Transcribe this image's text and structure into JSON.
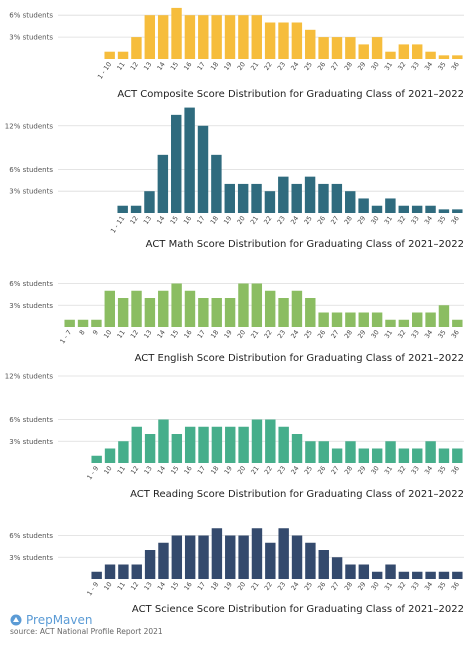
{
  "brand": {
    "name": "PrepMaven",
    "icon": "prepmaven-logo-icon",
    "color": "#5b9bd5"
  },
  "source": "source: ACT National Profile Report 2021",
  "chart_data": [
    {
      "type": "bar",
      "title": "ACT Composite Score Distribution for Graduating Class of 2021–2022",
      "color": "#f6bd3c",
      "yticks": [
        {
          "value": 3,
          "label": "3% students"
        },
        {
          "value": 6,
          "label": "6% students"
        }
      ],
      "ylim": [
        0,
        7
      ],
      "categories": [
        "1 - 10",
        "11",
        "12",
        "13",
        "14",
        "15",
        "16",
        "17",
        "18",
        "19",
        "20",
        "21",
        "22",
        "23",
        "24",
        "25",
        "26",
        "27",
        "28",
        "29",
        "30",
        "31",
        "32",
        "33",
        "34",
        "35",
        "36"
      ],
      "values": [
        1,
        1,
        3,
        6,
        6,
        7,
        6,
        6,
        6,
        6,
        6,
        6,
        5,
        5,
        5,
        4,
        3,
        3,
        3,
        2,
        3,
        1,
        2,
        2,
        1,
        0.5,
        0.5
      ]
    },
    {
      "type": "bar",
      "title": "ACT Math Score Distribution for Graduating Class of 2021–2022",
      "color": "#2f6b7e",
      "yticks": [
        {
          "value": 3,
          "label": "3% students"
        },
        {
          "value": 6,
          "label": "6% students"
        },
        {
          "value": 12,
          "label": "12% students"
        }
      ],
      "ylim": [
        0,
        15
      ],
      "categories": [
        "1 - 11",
        "12",
        "13",
        "14",
        "15",
        "16",
        "17",
        "18",
        "19",
        "20",
        "21",
        "22",
        "23",
        "24",
        "25",
        "26",
        "27",
        "28",
        "29",
        "30",
        "31",
        "32",
        "33",
        "34",
        "35",
        "36"
      ],
      "values": [
        1,
        1,
        3,
        8,
        13.5,
        14.5,
        12,
        8,
        4,
        4,
        4,
        3,
        5,
        4,
        5,
        4,
        4,
        3,
        2,
        1,
        2,
        1,
        1,
        1,
        0.5,
        0.5
      ]
    },
    {
      "type": "bar",
      "title": "ACT English Score Distribution for Graduating Class of 2021–2022",
      "color": "#8bbd62",
      "yticks": [
        {
          "value": 3,
          "label": "3% students"
        },
        {
          "value": 6,
          "label": "6% students"
        }
      ],
      "ylim": [
        0,
        7
      ],
      "categories": [
        "1 - 7",
        "8",
        "9",
        "10",
        "11",
        "12",
        "13",
        "14",
        "15",
        "16",
        "17",
        "18",
        "19",
        "20",
        "21",
        "22",
        "23",
        "24",
        "25",
        "26",
        "27",
        "28",
        "29",
        "30",
        "31",
        "32",
        "33",
        "34",
        "35",
        "36"
      ],
      "values": [
        1,
        1,
        1,
        5,
        4,
        5,
        4,
        5,
        6,
        5,
        4,
        4,
        4,
        6,
        6,
        5,
        4,
        5,
        4,
        2,
        2,
        2,
        2,
        2,
        1,
        1,
        2,
        2,
        3,
        1
      ]
    },
    {
      "type": "bar",
      "title": "ACT Reading Score Distribution for Graduating Class of 2021–2022",
      "color": "#46ae8b",
      "yticks": [
        {
          "value": 3,
          "label": "3% students"
        },
        {
          "value": 6,
          "label": "6% students"
        },
        {
          "value": 12,
          "label": "12% students"
        }
      ],
      "ylim": [
        0,
        12
      ],
      "categories": [
        "1 - 9",
        "10",
        "11",
        "12",
        "13",
        "14",
        "15",
        "16",
        "17",
        "18",
        "19",
        "20",
        "21",
        "22",
        "23",
        "24",
        "25",
        "26",
        "27",
        "28",
        "29",
        "30",
        "31",
        "32",
        "33",
        "34",
        "35",
        "36"
      ],
      "values": [
        1,
        2,
        3,
        5,
        4,
        6,
        4,
        5,
        5,
        5,
        5,
        5,
        6,
        6,
        5,
        4,
        3,
        3,
        2,
        3,
        2,
        2,
        3,
        2,
        2,
        3,
        2,
        2
      ]
    },
    {
      "type": "bar",
      "title": "ACT Science Score Distribution for Graduating Class of 2021–2022",
      "color": "#344a6d",
      "yticks": [
        {
          "value": 3,
          "label": "3% students"
        },
        {
          "value": 6,
          "label": "6% students"
        }
      ],
      "ylim": [
        0,
        7
      ],
      "categories": [
        "1 - 9",
        "10",
        "11",
        "12",
        "13",
        "14",
        "15",
        "16",
        "17",
        "18",
        "19",
        "20",
        "21",
        "22",
        "23",
        "24",
        "25",
        "26",
        "27",
        "28",
        "29",
        "30",
        "31",
        "32",
        "33",
        "34",
        "35",
        "36"
      ],
      "values": [
        1,
        2,
        2,
        2,
        4,
        5,
        6,
        6,
        6,
        7,
        6,
        6,
        7,
        5,
        7,
        6,
        5,
        4,
        3,
        2,
        2,
        1,
        2,
        1,
        1,
        1,
        1,
        1
      ]
    }
  ]
}
